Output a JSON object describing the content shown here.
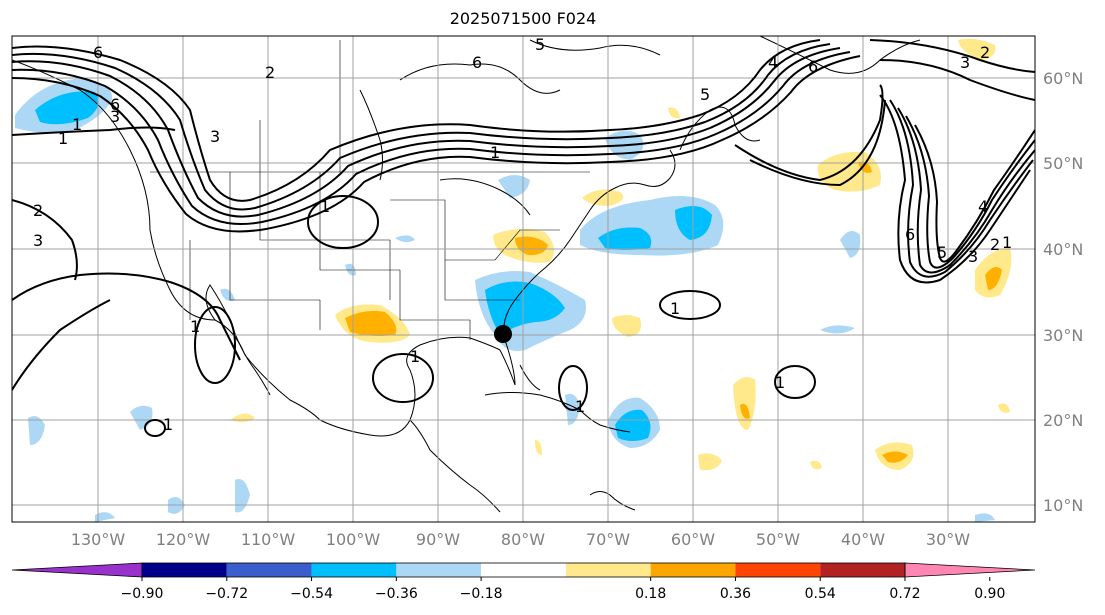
{
  "title": "2025071500 F024",
  "lat_labels": [
    "60°N",
    "50°N",
    "40°N",
    "30°N",
    "20°N",
    "10°N"
  ],
  "lon_labels": [
    "130°W",
    "120°W",
    "110°W",
    "100°W",
    "90°W",
    "80°W",
    "70°W",
    "60°W",
    "50°W",
    "40°W",
    "30°W"
  ],
  "colorbar": {
    "ticks": [
      "−0.90",
      "−0.72",
      "−0.54",
      "−0.36",
      "−0.18",
      "0.18",
      "0.36",
      "0.54",
      "0.72",
      "0.90"
    ],
    "colors": [
      "#9932cc",
      "#00008b",
      "#3a5fcd",
      "#00bfff",
      "#add8f5",
      "#ffffff",
      "#ffe98a",
      "#ffa500",
      "#ff4500",
      "#b22222",
      "#ff85b3"
    ]
  },
  "contour_labels": [
    "6",
    "3",
    "6",
    "1",
    "2",
    "3",
    "1",
    "1",
    "1",
    "1",
    "5",
    "6",
    "5",
    "4",
    "6",
    "3",
    "2",
    "1",
    "6",
    "5",
    "4",
    "3",
    "2",
    "1",
    "2",
    "3",
    "1",
    "1",
    "1",
    "1"
  ],
  "colors": {
    "pos_light": "#ffe98a",
    "pos_mid": "#ffb000",
    "neg_light": "#add8f5",
    "neg_mid": "#00bfff",
    "grid": "#a0a0a0"
  }
}
